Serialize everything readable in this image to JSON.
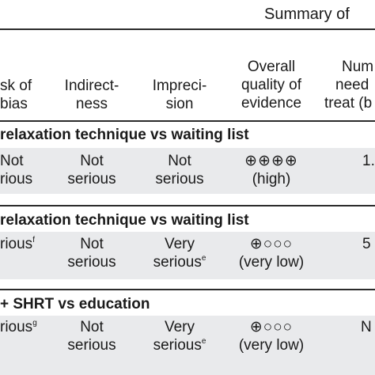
{
  "table": {
    "summary_label": "Summary of",
    "headers": {
      "risk_of_bias": [
        "sk of",
        "bias"
      ],
      "indirectness": [
        "Indirect-",
        "ness"
      ],
      "imprecision": [
        "Impreci-",
        "sion"
      ],
      "quality": [
        "Overall",
        "quality of",
        "evidence"
      ],
      "nnt": [
        "Num",
        "need",
        "treat (b"
      ]
    },
    "sections": [
      {
        "title": "relaxation technique vs waiting list",
        "row": {
          "risk_of_bias": [
            "Not",
            "rious"
          ],
          "risk_of_bias_sup": "",
          "indirectness": [
            "Not",
            "serious"
          ],
          "imprecision": [
            "Not",
            "serious"
          ],
          "imprecision_sup": "",
          "quality_symbols": "⊕⊕⊕⊕",
          "quality_label": "(high)",
          "nnt": "1."
        }
      },
      {
        "title": "relaxation technique vs waiting list",
        "row": {
          "risk_of_bias": [
            "",
            "rious"
          ],
          "risk_of_bias_sup": "f",
          "indirectness": [
            "Not",
            "serious"
          ],
          "imprecision": [
            "Very",
            "serious"
          ],
          "imprecision_sup": "e",
          "quality_symbols": "⊕○○○",
          "quality_label": "(very low)",
          "nnt": "5"
        }
      },
      {
        "title": "+ SHRT vs education",
        "row": {
          "risk_of_bias": [
            "",
            "rious"
          ],
          "risk_of_bias_sup": "g",
          "indirectness": [
            "Not",
            "serious"
          ],
          "imprecision": [
            "Very",
            "serious"
          ],
          "imprecision_sup": "e",
          "quality_symbols": "⊕○○○",
          "quality_label": "(very low)",
          "nnt": "N"
        }
      }
    ]
  }
}
